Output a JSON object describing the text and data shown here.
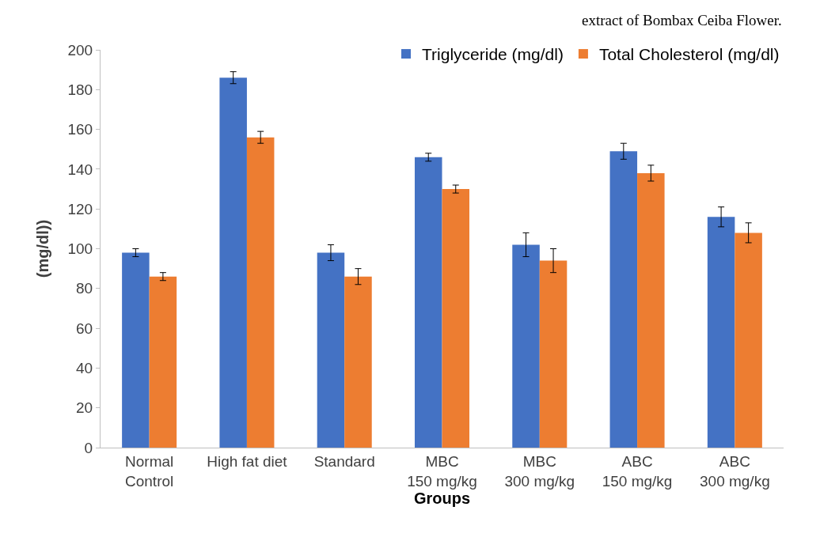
{
  "chart_data": {
    "type": "bar",
    "xlabel": "Groups",
    "ylabel": "(mg/dl))",
    "annotations": [
      "extract of Bombax Ceiba Flower."
    ],
    "categories": [
      "Normal\nControl",
      "High fat diet",
      "Standard",
      "MBC\n150 mg/kg",
      "MBC\n300 mg/kg",
      "ABC\n150 mg/kg",
      "ABC\n300 mg/kg"
    ],
    "series": [
      {
        "name": "Triglyceride (mg/dl)",
        "color": "#4472c4",
        "values": [
          98,
          186,
          98,
          146,
          102,
          149,
          116
        ],
        "errors": [
          2,
          3,
          4,
          2,
          6,
          4,
          5
        ]
      },
      {
        "name": "Total Cholesterol (mg/dl)",
        "color": "#ed7d31",
        "values": [
          86,
          156,
          86,
          130,
          94,
          138,
          108
        ],
        "errors": [
          2,
          3,
          4,
          2,
          6,
          4,
          5
        ]
      }
    ],
    "ylim": [
      0,
      200
    ],
    "yticks": [
      0,
      20,
      40,
      60,
      80,
      100,
      120,
      140,
      160,
      180,
      200
    ],
    "grid": false,
    "legend": "top right"
  }
}
